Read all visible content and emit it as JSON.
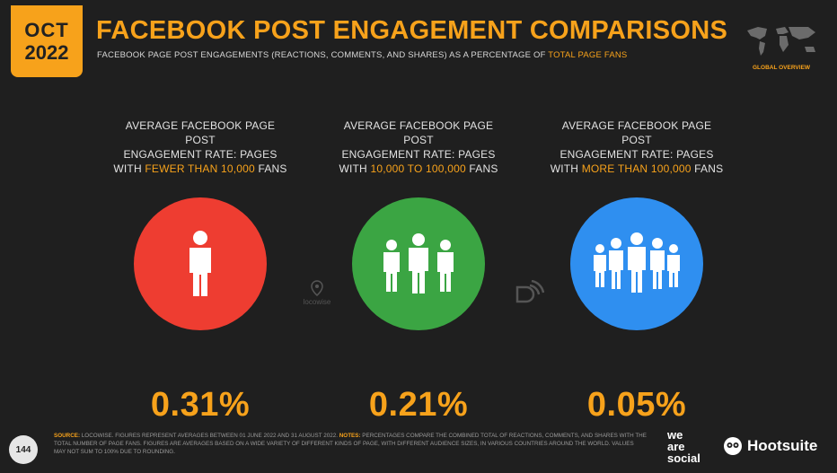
{
  "badge": {
    "month": "OCT",
    "year": "2022"
  },
  "header": {
    "title": "FACEBOOK POST ENGAGEMENT COMPARISONS",
    "subtitle_pre": "FACEBOOK PAGE POST ENGAGEMENTS (REACTIONS, COMMENTS, AND SHARES) AS A PERCENTAGE OF ",
    "subtitle_hl": "TOTAL PAGE FANS",
    "global_label": "GLOBAL OVERVIEW"
  },
  "columns": [
    {
      "line1": "AVERAGE FACEBOOK PAGE POST",
      "line2": "ENGAGEMENT RATE: PAGES",
      "pre": "WITH ",
      "hl": "FEWER THAN 10,000",
      "post": " FANS",
      "value": "0.31%",
      "color": "#ee3d31",
      "icon": "single-person-icon"
    },
    {
      "line1": "AVERAGE FACEBOOK PAGE POST",
      "line2": "ENGAGEMENT RATE: PAGES",
      "pre": "WITH ",
      "hl": "10,000 TO 100,000",
      "post": " FANS",
      "value": "0.21%",
      "color": "#3ba543",
      "icon": "three-people-icon"
    },
    {
      "line1": "AVERAGE FACEBOOK PAGE POST",
      "line2": "ENGAGEMENT RATE: PAGES",
      "pre": "WITH ",
      "hl": "MORE THAN 100,000",
      "post": " FANS",
      "value": "0.05%",
      "color": "#2f8ff0",
      "icon": "five-people-icon"
    }
  ],
  "watermarks": {
    "locowise": "locowise"
  },
  "footer": {
    "source_label": "SOURCE:",
    "source_text": " LOCOWISE. FIGURES REPRESENT AVERAGES BETWEEN 01 JUNE 2022 AND 31 AUGUST 2022. ",
    "notes_label": "NOTES:",
    "notes_text": " PERCENTAGES COMPARE THE COMBINED TOTAL OF REACTIONS, COMMENTS, AND SHARES WITH THE TOTAL NUMBER OF PAGE FANS. FIGURES ARE AVERAGES BASED ON A WIDE VARIETY OF DIFFERENT KINDS OF PAGE, WITH DIFFERENT AUDIENCE SIZES, IN VARIOUS COUNTRIES AROUND THE WORLD. VALUES MAY NOT SUM TO 100% DUE TO ROUNDING.",
    "page_number": "144",
    "brand1_l1": "we",
    "brand1_l2": "are",
    "brand1_l3": "social",
    "brand2": "Hootsuite"
  }
}
